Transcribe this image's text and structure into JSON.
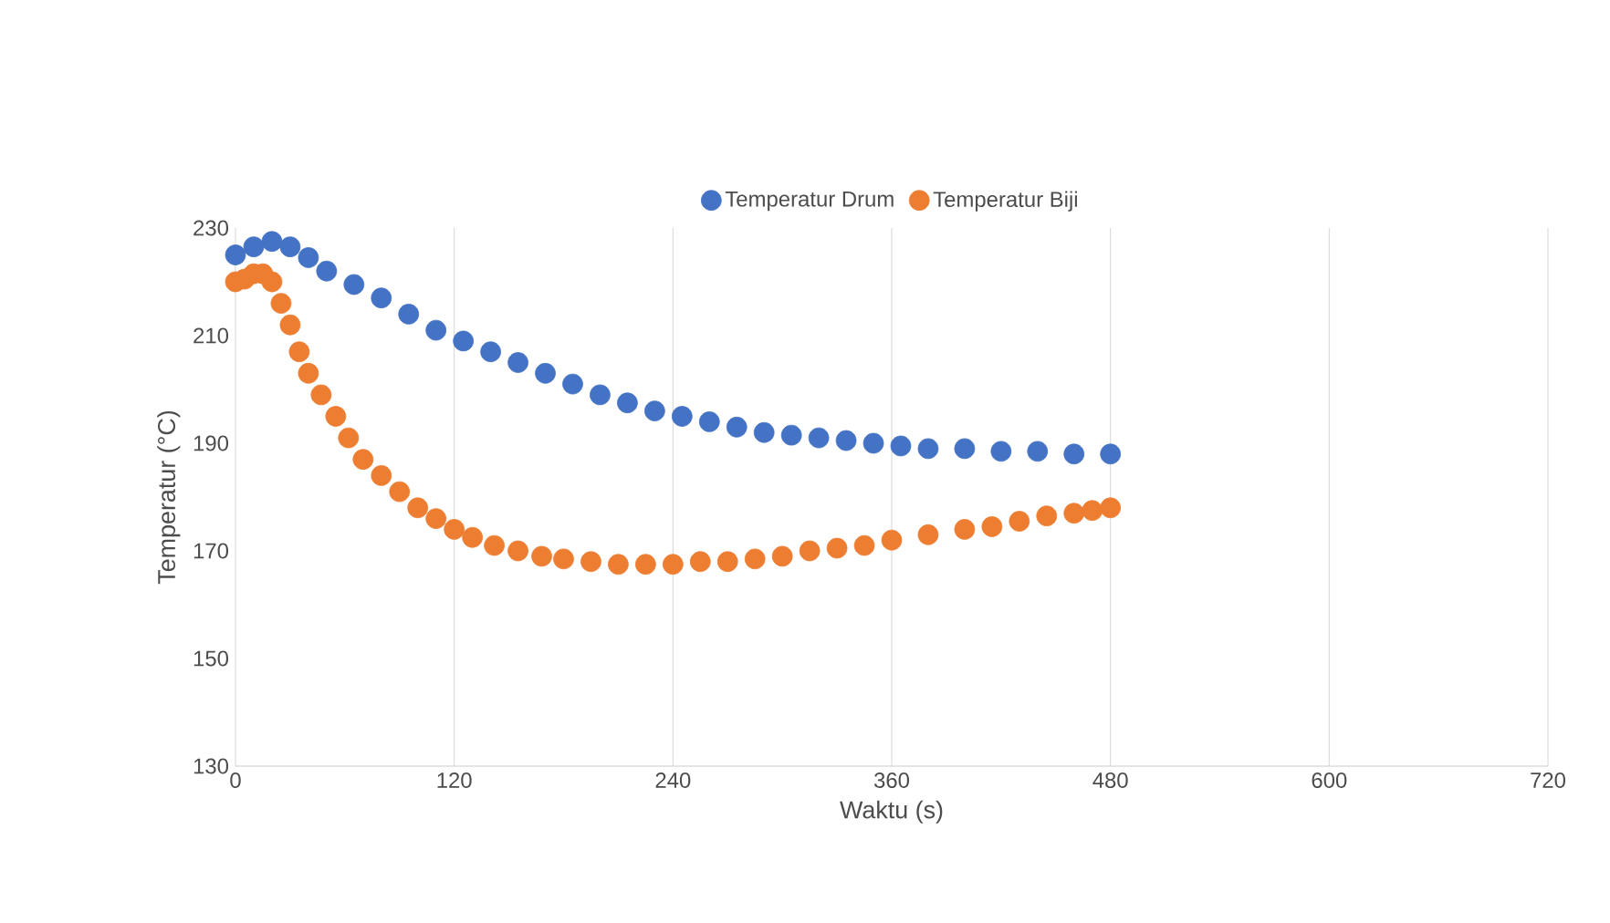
{
  "chart_data": {
    "type": "scatter",
    "xlabel": "Waktu (s)",
    "ylabel": "Temperatur (°C)",
    "xlim": [
      0,
      720
    ],
    "xticks": [
      0,
      120,
      240,
      360,
      480,
      600,
      720
    ],
    "ylim": [
      130,
      230
    ],
    "yticks": [
      130,
      150,
      170,
      190,
      210,
      230
    ],
    "grid": "x",
    "legend": "top",
    "series": [
      {
        "name": "Temperatur Drum",
        "color": "#4472c4",
        "x": [
          0,
          10,
          20,
          30,
          40,
          50,
          65,
          80,
          95,
          110,
          125,
          140,
          155,
          170,
          185,
          200,
          215,
          230,
          245,
          260,
          275,
          290,
          305,
          320,
          335,
          350,
          365,
          380,
          400,
          420,
          440,
          460,
          480
        ],
        "values": [
          225,
          226.5,
          227.5,
          226.5,
          224.5,
          222,
          219.5,
          217,
          214,
          211,
          209,
          207,
          205,
          203,
          201,
          199,
          197.5,
          196,
          195,
          194,
          193,
          192,
          191.5,
          191,
          190.5,
          190,
          189.5,
          189,
          189,
          188.5,
          188.5,
          188,
          188
        ]
      },
      {
        "name": "Temperatur Biji",
        "color": "#ed7d31",
        "x": [
          0,
          5,
          10,
          15,
          20,
          25,
          30,
          35,
          40,
          47,
          55,
          62,
          70,
          80,
          90,
          100,
          110,
          120,
          130,
          142,
          155,
          168,
          180,
          195,
          210,
          225,
          240,
          255,
          270,
          285,
          300,
          315,
          330,
          345,
          360,
          380,
          400,
          415,
          430,
          445,
          460,
          470,
          480
        ],
        "values": [
          220,
          220.5,
          221.5,
          221.5,
          220,
          216,
          212,
          207,
          203,
          199,
          195,
          191,
          187,
          184,
          181,
          178,
          176,
          174,
          172.5,
          171,
          170,
          169,
          168.5,
          168,
          167.5,
          167.5,
          167.5,
          168,
          168,
          168.5,
          169,
          170,
          170.5,
          171,
          172,
          173,
          174,
          174.5,
          175.5,
          176.5,
          177,
          177.5,
          178
        ]
      }
    ]
  }
}
